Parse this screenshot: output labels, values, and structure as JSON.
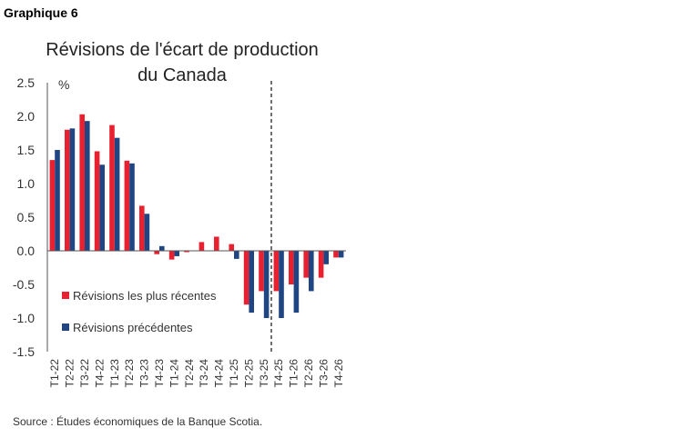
{
  "header": {
    "graph_label": "Graphique 6"
  },
  "chart_data": {
    "type": "bar",
    "title": "Révisions de l'écart de production du Canada",
    "title_lines": [
      "Révisions de l'écart de production",
      "du Canada"
    ],
    "ylabel": "%",
    "xlabel": "",
    "ylim": [
      -1.5,
      2.5
    ],
    "yticks": [
      -1.5,
      -1.0,
      -0.5,
      0.0,
      0.5,
      1.0,
      1.5,
      2.0,
      2.5
    ],
    "ytick_labels": [
      "-1.5",
      "-1.0",
      "-0.5",
      "0.0",
      "0.5",
      "1.0",
      "1.5",
      "2.0",
      "2.5"
    ],
    "categories": [
      "T1-22",
      "T2-22",
      "T3-22",
      "T4-22",
      "T1-23",
      "T2-23",
      "T3-23",
      "T4-23",
      "T1-24",
      "T2-24",
      "T3-24",
      "T4-24",
      "T1-25",
      "T2-25",
      "T3-25",
      "T4-25",
      "T1-26",
      "T2-26",
      "T3-26",
      "T4-26"
    ],
    "series": [
      {
        "name": "Révisions les plus récentes",
        "color": "#e8202f",
        "values": [
          1.35,
          1.8,
          2.03,
          1.48,
          1.87,
          1.34,
          0.67,
          -0.05,
          -0.13,
          -0.02,
          0.13,
          0.21,
          0.1,
          -0.8,
          -0.6,
          -0.6,
          -0.5,
          -0.4,
          -0.4,
          -0.1
        ]
      },
      {
        "name": "Révisions précédentes",
        "color": "#1f4582",
        "values": [
          1.5,
          1.82,
          1.93,
          1.28,
          1.68,
          1.3,
          0.55,
          0.07,
          -0.08,
          0.0,
          0.0,
          0.0,
          -0.12,
          -0.92,
          -1.0,
          -1.0,
          -0.92,
          -0.6,
          -0.2,
          -0.1
        ]
      }
    ],
    "vertical_marker_after": "T3-25",
    "legend_position": "bottom-left",
    "grid": false
  },
  "footer": {
    "source": "Source : Études économiques de la Banque Scotia."
  }
}
